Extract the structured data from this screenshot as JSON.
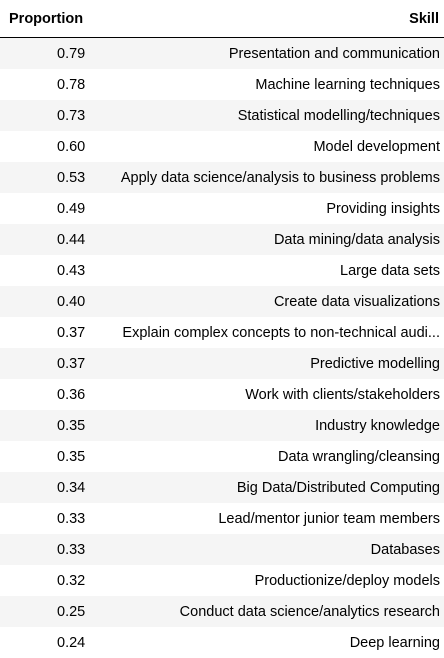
{
  "table": {
    "headers": {
      "proportion": "Proportion",
      "skill": "Skill"
    },
    "rows": [
      {
        "proportion": "0.79",
        "skill": "Presentation and communication"
      },
      {
        "proportion": "0.78",
        "skill": "Machine learning techniques"
      },
      {
        "proportion": "0.73",
        "skill": "Statistical modelling/techniques"
      },
      {
        "proportion": "0.60",
        "skill": "Model development"
      },
      {
        "proportion": "0.53",
        "skill": "Apply data science/analysis to business problems"
      },
      {
        "proportion": "0.49",
        "skill": "Providing insights"
      },
      {
        "proportion": "0.44",
        "skill": "Data mining/data analysis"
      },
      {
        "proportion": "0.43",
        "skill": "Large data sets"
      },
      {
        "proportion": "0.40",
        "skill": "Create data visualizations"
      },
      {
        "proportion": "0.37",
        "skill": "Explain complex concepts to non-technical audi..."
      },
      {
        "proportion": "0.37",
        "skill": "Predictive modelling"
      },
      {
        "proportion": "0.36",
        "skill": "Work with clients/stakeholders"
      },
      {
        "proportion": "0.35",
        "skill": "Industry knowledge"
      },
      {
        "proportion": "0.35",
        "skill": "Data wrangling/cleansing"
      },
      {
        "proportion": "0.34",
        "skill": "Big Data/Distributed Computing"
      },
      {
        "proportion": "0.33",
        "skill": "Lead/mentor junior team members"
      },
      {
        "proportion": "0.33",
        "skill": "Databases"
      },
      {
        "proportion": "0.32",
        "skill": "Productionize/deploy models"
      },
      {
        "proportion": "0.25",
        "skill": "Conduct data science/analytics research"
      },
      {
        "proportion": "0.24",
        "skill": "Deep learning"
      }
    ]
  },
  "colors": {
    "row_odd": "#f5f5f5",
    "row_even": "#ffffff",
    "header_rule": "#000000",
    "text": "#000000"
  }
}
